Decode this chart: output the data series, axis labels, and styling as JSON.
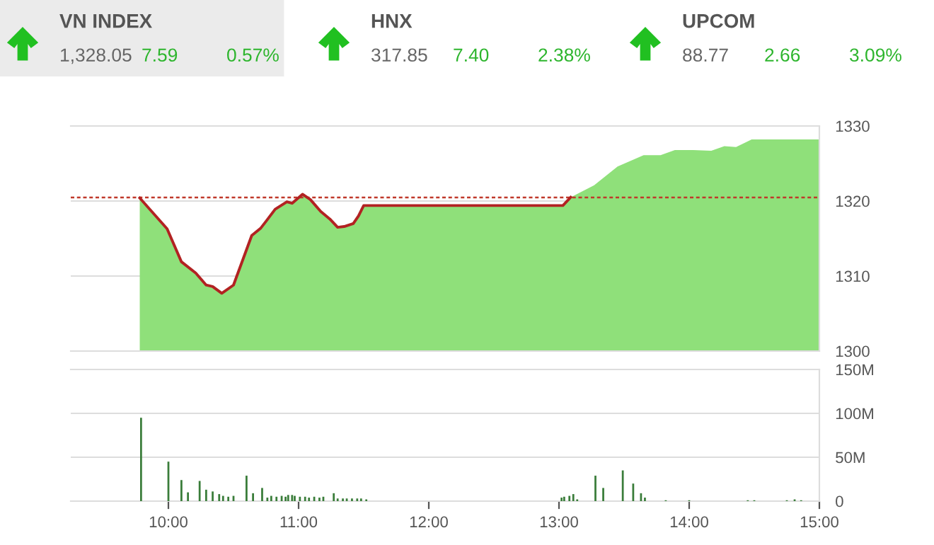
{
  "chart_data": [
    {
      "type": "other",
      "title": "VN INDEX",
      "annotations": [
        "1,328.05",
        "7.59",
        "0.57%"
      ]
    },
    {
      "type": "other",
      "title": "HNX",
      "annotations": [
        "317.85",
        "7.40",
        "2.38%"
      ]
    },
    {
      "type": "other",
      "title": "UPCOM",
      "annotations": [
        "88.77",
        "2.66",
        "3.09%"
      ]
    },
    {
      "type": "area",
      "xlim": [
        9.25,
        15
      ],
      "ylim": [
        1300,
        1330
      ],
      "yticks": [
        1300,
        1310,
        1320,
        1330
      ],
      "grid": "y",
      "tick_labels": "y",
      "ref_lines": [
        {
          "axis": "y",
          "value": 1320.46,
          "color": "#c0392b",
          "line_style": "dotted"
        }
      ],
      "series": [
        {
          "type": "area",
          "color": "#8fe07a",
          "x": [
            9.78,
            9.99,
            10.1,
            10.21,
            10.29,
            10.34,
            10.41,
            10.5,
            10.64,
            10.71,
            10.75,
            10.82,
            10.91,
            10.95,
            11.03,
            11.09,
            11.17,
            11.24,
            11.3,
            11.35,
            11.42,
            11.46,
            11.5,
            13.03,
            13.09,
            13.27,
            13.45,
            13.65,
            13.78,
            13.89,
            14.03,
            14.17,
            14.27,
            14.36,
            14.48,
            15.0
          ],
          "values": [
            1320.4,
            1316.3,
            1311.9,
            1310.4,
            1308.8,
            1308.6,
            1307.7,
            1308.8,
            1315.4,
            1316.4,
            1317.3,
            1318.9,
            1319.9,
            1319.7,
            1320.9,
            1320.2,
            1318.6,
            1317.6,
            1316.5,
            1316.6,
            1317.0,
            1318.0,
            1319.4,
            1319.4,
            1320.5,
            1322.1,
            1324.6,
            1326.1,
            1326.1,
            1326.8,
            1326.8,
            1326.7,
            1327.3,
            1327.2,
            1328.2,
            1328.2
          ]
        },
        {
          "type": "line",
          "color": "#b22222",
          "x": [
            9.78,
            9.99,
            10.1,
            10.21,
            10.29,
            10.34,
            10.41,
            10.5,
            10.64,
            10.71,
            10.75,
            10.82,
            10.91,
            10.95,
            11.03,
            11.09,
            11.17,
            11.24,
            11.3,
            11.35,
            11.42,
            11.46,
            11.5,
            13.03,
            13.09
          ],
          "values": [
            1320.4,
            1316.3,
            1311.9,
            1310.4,
            1308.8,
            1308.6,
            1307.7,
            1308.8,
            1315.4,
            1316.4,
            1317.3,
            1318.9,
            1319.9,
            1319.7,
            1320.9,
            1320.2,
            1318.6,
            1317.6,
            1316.5,
            1316.6,
            1317.0,
            1318.0,
            1319.4,
            1319.4,
            1320.5
          ]
        }
      ]
    },
    {
      "type": "bar",
      "xlim": [
        9.25,
        15
      ],
      "ylim": [
        0,
        150
      ],
      "grid": "y",
      "xticks": [
        {
          "value": 10,
          "label": "10:00"
        },
        {
          "value": 11,
          "label": "11:00"
        },
        {
          "value": 12,
          "label": "12:00"
        },
        {
          "value": 13,
          "label": "13:00"
        },
        {
          "value": 14,
          "label": "14:00"
        },
        {
          "value": 15,
          "label": "15:00"
        }
      ],
      "yticks": [
        0,
        {
          "value": 50,
          "label": "50M"
        },
        {
          "value": 100,
          "label": "100M"
        },
        {
          "value": 150,
          "label": "150M"
        }
      ],
      "series": [
        {
          "color": "#3a7d3a",
          "x": [
            9.79,
            10.0,
            10.1,
            10.15,
            10.24,
            10.29,
            10.34,
            10.39,
            10.42,
            10.46,
            10.5,
            10.6,
            10.65,
            10.72,
            10.76,
            10.79,
            10.83,
            10.87,
            10.9,
            10.92,
            10.95,
            10.97,
            11.01,
            11.05,
            11.08,
            11.12,
            11.16,
            11.19,
            11.27,
            11.3,
            11.34,
            11.37,
            11.41,
            11.45,
            11.48,
            11.52,
            13.02,
            13.04,
            13.08,
            13.11,
            13.14,
            13.28,
            13.34,
            13.49,
            13.57,
            13.63,
            13.66,
            13.82,
            14.0,
            14.45,
            14.5,
            14.75,
            14.81,
            14.86
          ],
          "values": [
            95,
            45,
            24,
            10,
            23,
            13,
            11,
            8,
            6,
            5,
            6,
            29,
            9,
            15,
            4,
            6,
            5,
            6,
            5,
            7,
            7,
            6,
            5,
            5,
            4,
            5,
            4,
            5,
            9,
            3,
            3,
            3,
            3,
            3,
            3,
            2,
            4,
            5,
            6,
            8,
            2,
            29,
            15,
            35,
            20,
            9,
            4,
            1,
            1,
            1,
            1,
            1,
            2,
            1
          ]
        }
      ]
    }
  ]
}
